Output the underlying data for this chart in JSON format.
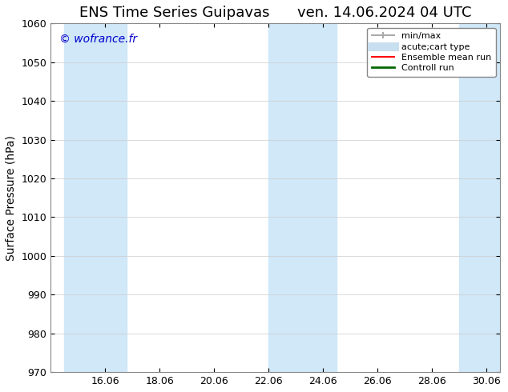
{
  "title_left": "ENS Time Series Guipavas",
  "title_right": "ven. 14.06.2024 04 UTC",
  "ylabel": "Surface Pressure (hPa)",
  "ylim": [
    970,
    1060
  ],
  "yticks": [
    970,
    980,
    990,
    1000,
    1010,
    1020,
    1030,
    1040,
    1050,
    1060
  ],
  "xlim_start": 14.0,
  "xlim_end": 30.5,
  "xticks": [
    16.06,
    18.06,
    20.06,
    22.06,
    24.06,
    26.06,
    28.06,
    30.06
  ],
  "xtick_labels": [
    "16.06",
    "18.06",
    "20.06",
    "22.06",
    "24.06",
    "26.06",
    "28.06",
    "30.06"
  ],
  "background_color": "#ffffff",
  "plot_bg_color": "#ffffff",
  "shaded_bands": [
    {
      "x_start": 14.5,
      "x_end": 16.8,
      "color": "#d0e8f8"
    },
    {
      "x_start": 22.0,
      "x_end": 24.5,
      "color": "#d0e8f8"
    },
    {
      "x_start": 29.0,
      "x_end": 30.5,
      "color": "#d0e8f8"
    }
  ],
  "watermark": "© wofrance.fr",
  "watermark_color": "#0000cc",
  "legend_items": [
    {
      "label": "min/max",
      "color": "#aaaaaa",
      "lw": 1.5,
      "style": "|-|"
    },
    {
      "label": "acute;cart type",
      "color": "#c8dff0",
      "lw": 8
    },
    {
      "label": "Ensemble mean run",
      "color": "#ff0000",
      "lw": 1.5
    },
    {
      "label": "Controll run",
      "color": "#006600",
      "lw": 2
    }
  ],
  "title_fontsize": 13,
  "label_fontsize": 10,
  "tick_fontsize": 9
}
